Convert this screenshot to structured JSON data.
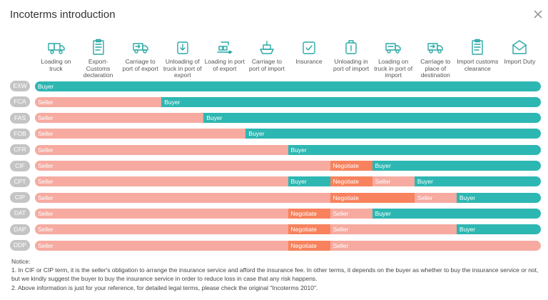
{
  "dialog": {
    "title": "Incoterms introduction"
  },
  "colors": {
    "buyer": "#2db7b2",
    "seller": "#f6aaa0",
    "negotiate": "#f7825d",
    "term_badge": "#c4c4c4"
  },
  "columns": [
    {
      "label": "Loading on truck",
      "icon": "loading-truck-icon"
    },
    {
      "label": "Export-Customs declaration",
      "icon": "customs-declaration-icon"
    },
    {
      "label": "Carriage to port of export",
      "icon": "carriage-export-icon"
    },
    {
      "label": "Unloading of truck in port of export",
      "icon": "unloading-export-icon"
    },
    {
      "label": "Loading in port of export",
      "icon": "loading-port-icon"
    },
    {
      "label": "Carriage to port of import",
      "icon": "ship-icon"
    },
    {
      "label": "Insurance",
      "icon": "insurance-icon"
    },
    {
      "label": "Unloading in port of import",
      "icon": "unloading-import-icon"
    },
    {
      "label": "Loading on truck in port of import",
      "icon": "loading-import-truck-icon"
    },
    {
      "label": "Carriage to place of destination",
      "icon": "carriage-destination-icon"
    },
    {
      "label": "Import customs clearance",
      "icon": "import-clearance-icon"
    },
    {
      "label": "Import Duty",
      "icon": "import-duty-icon"
    }
  ],
  "rows": [
    {
      "term": "EXW",
      "segments": [
        {
          "role": "buyer",
          "label": "Buyer",
          "from": 0,
          "to": 12
        }
      ]
    },
    {
      "term": "FCA",
      "segments": [
        {
          "role": "seller",
          "label": "Seller",
          "from": 0,
          "to": 3
        },
        {
          "role": "buyer",
          "label": "Buyer",
          "from": 3,
          "to": 12
        }
      ]
    },
    {
      "term": "FAS",
      "segments": [
        {
          "role": "seller",
          "label": "Seller",
          "from": 0,
          "to": 4
        },
        {
          "role": "buyer",
          "label": "Buyer",
          "from": 4,
          "to": 12
        }
      ]
    },
    {
      "term": "FOB",
      "segments": [
        {
          "role": "seller",
          "label": "Seller",
          "from": 0,
          "to": 5
        },
        {
          "role": "buyer",
          "label": "Buyer",
          "from": 5,
          "to": 12
        }
      ]
    },
    {
      "term": "CFR",
      "segments": [
        {
          "role": "seller",
          "label": "Seller",
          "from": 0,
          "to": 6
        },
        {
          "role": "buyer",
          "label": "Buyer",
          "from": 6,
          "to": 12
        }
      ]
    },
    {
      "term": "CIF",
      "segments": [
        {
          "role": "seller",
          "label": "Seller",
          "from": 0,
          "to": 7
        },
        {
          "role": "negotiate",
          "label": "Negotiate",
          "from": 7,
          "to": 8
        },
        {
          "role": "buyer",
          "label": "Buyer",
          "from": 8,
          "to": 12
        }
      ]
    },
    {
      "term": "CPT",
      "segments": [
        {
          "role": "seller",
          "label": "Seller",
          "from": 0,
          "to": 6
        },
        {
          "role": "buyer",
          "label": "Buyer",
          "from": 6,
          "to": 7
        },
        {
          "role": "negotiate",
          "label": "Negotiate",
          "from": 7,
          "to": 8
        },
        {
          "role": "seller",
          "label": "Seller",
          "from": 8,
          "to": 9
        },
        {
          "role": "buyer",
          "label": "Buyer",
          "from": 9,
          "to": 12
        }
      ]
    },
    {
      "term": "CIP",
      "segments": [
        {
          "role": "seller",
          "label": "Seller",
          "from": 0,
          "to": 7
        },
        {
          "role": "negotiate",
          "label": "Negotiate",
          "from": 7,
          "to": 9
        },
        {
          "role": "seller",
          "label": "Seller",
          "from": 9,
          "to": 10
        },
        {
          "role": "buyer",
          "label": "Buyer",
          "from": 10,
          "to": 12
        }
      ]
    },
    {
      "term": "DAT",
      "segments": [
        {
          "role": "seller",
          "label": "Seller",
          "from": 0,
          "to": 6
        },
        {
          "role": "negotiate",
          "label": "Negotiate",
          "from": 6,
          "to": 7
        },
        {
          "role": "seller",
          "label": "Seller",
          "from": 7,
          "to": 8
        },
        {
          "role": "buyer",
          "label": "Buyer",
          "from": 8,
          "to": 12
        }
      ]
    },
    {
      "term": "DAP",
      "segments": [
        {
          "role": "seller",
          "label": "Seller",
          "from": 0,
          "to": 6
        },
        {
          "role": "negotiate",
          "label": "Negotiate",
          "from": 6,
          "to": 7
        },
        {
          "role": "seller",
          "label": "Seller",
          "from": 7,
          "to": 10
        },
        {
          "role": "buyer",
          "label": "Buyer",
          "from": 10,
          "to": 12
        }
      ]
    },
    {
      "term": "DDP",
      "segments": [
        {
          "role": "seller",
          "label": "Seller",
          "from": 0,
          "to": 6
        },
        {
          "role": "negotiate",
          "label": "Negotiate",
          "from": 6,
          "to": 7
        },
        {
          "role": "seller",
          "label": "Seller",
          "from": 7,
          "to": 12
        }
      ]
    }
  ],
  "notice": {
    "heading": "Notice:",
    "lines": [
      "1. In CIF or CIP term, it is the seller's obligation to arrange the insurance service and afford the insurance fee. In other terms, it depends on the buyer as whether to buy the insurance service or not, but we kindly suggest the buyer to buy the insurance service in order to reduce loss in case that any risk happens.",
      "2. Above information is just for your reference, for detailed legal terms, please check the original \"Incoterms 2010\"."
    ]
  }
}
